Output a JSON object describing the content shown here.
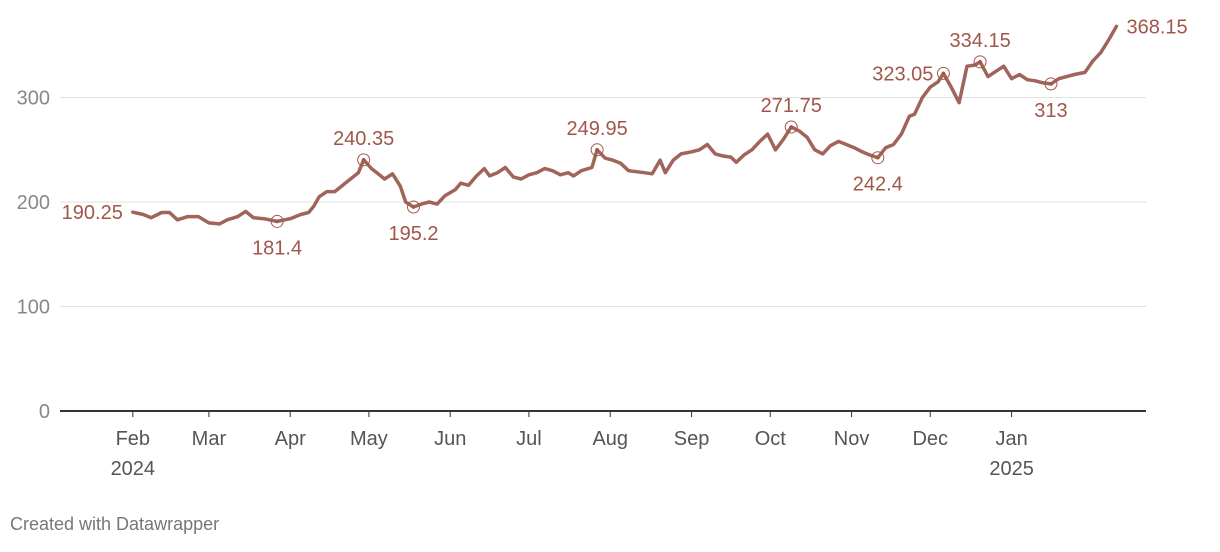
{
  "credit": "Created with Datawrapper",
  "chart_data": {
    "type": "line",
    "title": "",
    "xlabel": "",
    "ylabel": "",
    "ylim": [
      0,
      370
    ],
    "y_ticks": [
      0,
      100,
      200,
      300
    ],
    "grid": true,
    "line_color": "#a0645a",
    "label_color": "#a0574a",
    "x_range": [
      "2024-01-05",
      "2025-02-14"
    ],
    "x_ticks": [
      {
        "date": "2024-02-01",
        "label": "Feb",
        "sub": "2024"
      },
      {
        "date": "2024-03-01",
        "label": "Mar",
        "sub": ""
      },
      {
        "date": "2024-04-01",
        "label": "Apr",
        "sub": ""
      },
      {
        "date": "2024-05-01",
        "label": "May",
        "sub": ""
      },
      {
        "date": "2024-06-01",
        "label": "Jun",
        "sub": ""
      },
      {
        "date": "2024-07-01",
        "label": "Jul",
        "sub": ""
      },
      {
        "date": "2024-08-01",
        "label": "Aug",
        "sub": ""
      },
      {
        "date": "2024-09-01",
        "label": "Sep",
        "sub": ""
      },
      {
        "date": "2024-10-01",
        "label": "Oct",
        "sub": ""
      },
      {
        "date": "2024-11-01",
        "label": "Nov",
        "sub": ""
      },
      {
        "date": "2024-12-01",
        "label": "Dec",
        "sub": ""
      },
      {
        "date": "2025-01-01",
        "label": "Jan",
        "sub": "2025"
      }
    ],
    "series": [
      {
        "points": [
          [
            "2024-02-01",
            190.25
          ],
          [
            "2024-02-05",
            188
          ],
          [
            "2024-02-08",
            185
          ],
          [
            "2024-02-12",
            190
          ],
          [
            "2024-02-15",
            190
          ],
          [
            "2024-02-18",
            183
          ],
          [
            "2024-02-22",
            186
          ],
          [
            "2024-02-26",
            186
          ],
          [
            "2024-03-01",
            180
          ],
          [
            "2024-03-05",
            179
          ],
          [
            "2024-03-08",
            183
          ],
          [
            "2024-03-12",
            186
          ],
          [
            "2024-03-15",
            191
          ],
          [
            "2024-03-18",
            185
          ],
          [
            "2024-03-22",
            184
          ],
          [
            "2024-03-27",
            181.4
          ],
          [
            "2024-04-01",
            184
          ],
          [
            "2024-04-05",
            188
          ],
          [
            "2024-04-08",
            190
          ],
          [
            "2024-04-10",
            196
          ],
          [
            "2024-04-12",
            205
          ],
          [
            "2024-04-15",
            210
          ],
          [
            "2024-04-18",
            210
          ],
          [
            "2024-04-21",
            216
          ],
          [
            "2024-04-24",
            222
          ],
          [
            "2024-04-27",
            228
          ],
          [
            "2024-04-29",
            240.35
          ],
          [
            "2024-05-02",
            232
          ],
          [
            "2024-05-05",
            226
          ],
          [
            "2024-05-07",
            222
          ],
          [
            "2024-05-10",
            227
          ],
          [
            "2024-05-13",
            215
          ],
          [
            "2024-05-15",
            200
          ],
          [
            "2024-05-18",
            195.2
          ],
          [
            "2024-05-21",
            198
          ],
          [
            "2024-05-24",
            200
          ],
          [
            "2024-05-27",
            198
          ],
          [
            "2024-05-30",
            206
          ],
          [
            "2024-06-03",
            212
          ],
          [
            "2024-06-05",
            218
          ],
          [
            "2024-06-08",
            216
          ],
          [
            "2024-06-11",
            225
          ],
          [
            "2024-06-14",
            232
          ],
          [
            "2024-06-16",
            225
          ],
          [
            "2024-06-19",
            228
          ],
          [
            "2024-06-22",
            233
          ],
          [
            "2024-06-25",
            224
          ],
          [
            "2024-06-28",
            222
          ],
          [
            "2024-07-01",
            226
          ],
          [
            "2024-07-04",
            228
          ],
          [
            "2024-07-07",
            232
          ],
          [
            "2024-07-10",
            230
          ],
          [
            "2024-07-13",
            226
          ],
          [
            "2024-07-16",
            228
          ],
          [
            "2024-07-18",
            225
          ],
          [
            "2024-07-21",
            230
          ],
          [
            "2024-07-25",
            233
          ],
          [
            "2024-07-27",
            249.95
          ],
          [
            "2024-07-30",
            242
          ],
          [
            "2024-08-02",
            240
          ],
          [
            "2024-08-05",
            237
          ],
          [
            "2024-08-08",
            230
          ],
          [
            "2024-08-11",
            229
          ],
          [
            "2024-08-14",
            228
          ],
          [
            "2024-08-17",
            227
          ],
          [
            "2024-08-20",
            240
          ],
          [
            "2024-08-22",
            228
          ],
          [
            "2024-08-25",
            240
          ],
          [
            "2024-08-28",
            246
          ],
          [
            "2024-09-01",
            248
          ],
          [
            "2024-09-04",
            250
          ],
          [
            "2024-09-07",
            255
          ],
          [
            "2024-09-10",
            246
          ],
          [
            "2024-09-13",
            244
          ],
          [
            "2024-09-16",
            243
          ],
          [
            "2024-09-18",
            238
          ],
          [
            "2024-09-21",
            245
          ],
          [
            "2024-09-24",
            250
          ],
          [
            "2024-09-27",
            258
          ],
          [
            "2024-09-30",
            265
          ],
          [
            "2024-10-03",
            250
          ],
          [
            "2024-10-06",
            260
          ],
          [
            "2024-10-09",
            271.75
          ],
          [
            "2024-10-12",
            268
          ],
          [
            "2024-10-15",
            262
          ],
          [
            "2024-10-18",
            250
          ],
          [
            "2024-10-21",
            246
          ],
          [
            "2024-10-24",
            254
          ],
          [
            "2024-10-27",
            258
          ],
          [
            "2024-10-30",
            255
          ],
          [
            "2024-11-02",
            252
          ],
          [
            "2024-11-05",
            248
          ],
          [
            "2024-11-08",
            245
          ],
          [
            "2024-11-11",
            242.4
          ],
          [
            "2024-11-14",
            252
          ],
          [
            "2024-11-17",
            255
          ],
          [
            "2024-11-20",
            265
          ],
          [
            "2024-11-23",
            282
          ],
          [
            "2024-11-25",
            284
          ],
          [
            "2024-11-28",
            300
          ],
          [
            "2024-12-01",
            310
          ],
          [
            "2024-12-04",
            315
          ],
          [
            "2024-12-06",
            323.05
          ],
          [
            "2024-12-09",
            310
          ],
          [
            "2024-12-12",
            295
          ],
          [
            "2024-12-15",
            330
          ],
          [
            "2024-12-18",
            331
          ],
          [
            "2024-12-20",
            334.15
          ],
          [
            "2024-12-23",
            320
          ],
          [
            "2024-12-26",
            325
          ],
          [
            "2024-12-29",
            330
          ],
          [
            "2025-01-01",
            318
          ],
          [
            "2025-01-04",
            322
          ],
          [
            "2025-01-07",
            317
          ],
          [
            "2025-01-10",
            316
          ],
          [
            "2025-01-13",
            314
          ],
          [
            "2025-01-16",
            313
          ],
          [
            "2025-01-19",
            318
          ],
          [
            "2025-01-22",
            320
          ],
          [
            "2025-01-25",
            322
          ],
          [
            "2025-01-29",
            324
          ],
          [
            "2025-02-01",
            335
          ],
          [
            "2025-02-04",
            343
          ],
          [
            "2025-02-07",
            355
          ],
          [
            "2025-02-10",
            368.15
          ]
        ]
      }
    ],
    "annotations": [
      {
        "date": "2024-02-01",
        "value": 190.25,
        "text": "190.25",
        "marker": false,
        "pos": "left"
      },
      {
        "date": "2024-03-27",
        "value": 181.4,
        "text": "181.4",
        "marker": true,
        "pos": "below"
      },
      {
        "date": "2024-04-29",
        "value": 240.35,
        "text": "240.35",
        "marker": true,
        "pos": "above"
      },
      {
        "date": "2024-05-18",
        "value": 195.2,
        "text": "195.2",
        "marker": true,
        "pos": "below"
      },
      {
        "date": "2024-07-27",
        "value": 249.95,
        "text": "249.95",
        "marker": true,
        "pos": "above"
      },
      {
        "date": "2024-10-09",
        "value": 271.75,
        "text": "271.75",
        "marker": true,
        "pos": "above"
      },
      {
        "date": "2024-11-11",
        "value": 242.4,
        "text": "242.4",
        "marker": true,
        "pos": "below"
      },
      {
        "date": "2024-12-06",
        "value": 323.05,
        "text": "323.05",
        "marker": true,
        "pos": "left"
      },
      {
        "date": "2024-12-20",
        "value": 334.15,
        "text": "334.15",
        "marker": true,
        "pos": "above"
      },
      {
        "date": "2025-01-16",
        "value": 313,
        "text": "313",
        "marker": true,
        "pos": "below"
      },
      {
        "date": "2025-02-10",
        "value": 368.15,
        "text": "368.15",
        "marker": false,
        "pos": "right"
      }
    ]
  }
}
